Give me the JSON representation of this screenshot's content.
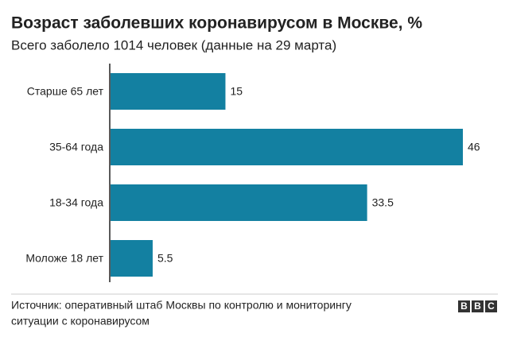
{
  "chart_data": {
    "type": "bar",
    "orientation": "horizontal",
    "title": "Возраст заболевших коронавирусом в Москве, %",
    "subtitle": "Всего заболело 1014 человек (данные на 29 марта)",
    "categories": [
      "Старше 65 лет",
      "35-64 года",
      "18-34 года",
      "Моложе 18 лет"
    ],
    "values": [
      15,
      46,
      33.5,
      5.5
    ],
    "color": "#1380a1",
    "xlim": [
      0,
      46
    ],
    "source": [
      "Источник: оперативный штаб Москвы по контролю и мониторингу",
      "ситуации с коронавирусом"
    ],
    "logo": [
      "B",
      "B",
      "C"
    ]
  }
}
